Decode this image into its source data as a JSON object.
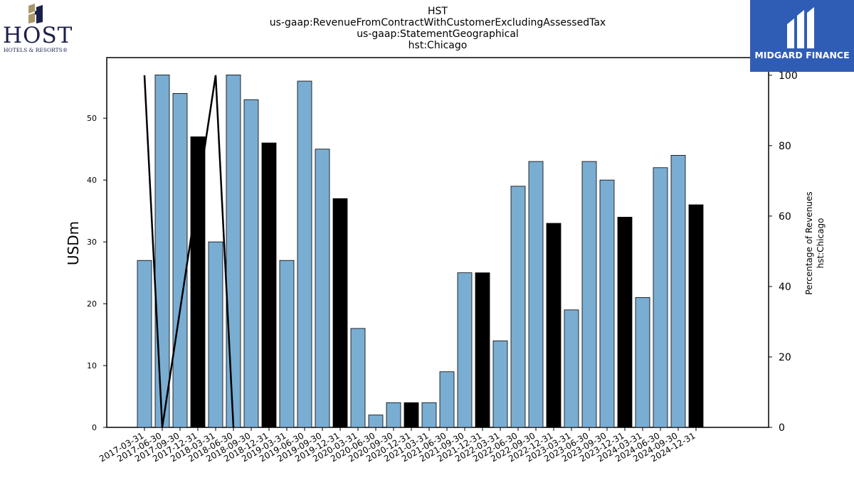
{
  "header": {
    "title_lines": [
      "HST",
      "us-gaap:RevenueFromContractWithCustomerExcludingAssessedTax",
      "us-gaap:StatementGeographical",
      "hst:Chicago"
    ]
  },
  "logos": {
    "host": {
      "word": "HOST",
      "subtitle": "HOTELS & RESORTS®",
      "icon": "host-h-icon",
      "colors": [
        "#a9976a",
        "#1b1f4a"
      ]
    },
    "midgard": {
      "text": "MIDGARD FINANCE",
      "icon": "midgard-m-icon",
      "background": "#2f5db5"
    }
  },
  "chart_data": {
    "type": "bar",
    "categories": [
      "2017-03-31",
      "2017-06-30",
      "2017-09-30",
      "2017-12-31",
      "2018-03-31",
      "2018-06-30",
      "2018-09-30",
      "2018-12-31",
      "2019-03-31",
      "2019-06-30",
      "2019-09-30",
      "2019-12-31",
      "2020-03-31",
      "2020-06-30",
      "2020-09-30",
      "2020-12-31",
      "2021-03-31",
      "2021-06-30",
      "2021-09-30",
      "2021-12-31",
      "2022-03-31",
      "2022-06-30",
      "2022-09-30",
      "2022-12-31",
      "2023-03-31",
      "2023-06-30",
      "2023-09-30",
      "2023-12-31",
      "2024-03-31",
      "2024-06-30",
      "2024-09-30",
      "2024-12-31"
    ],
    "series": [
      {
        "values": [
          27,
          57,
          54,
          47,
          30,
          57,
          53,
          46,
          27,
          56,
          45,
          37,
          16,
          2,
          4,
          4,
          4,
          9,
          25,
          25,
          14,
          39,
          43,
          33,
          19,
          43,
          40,
          34,
          21,
          42,
          44,
          36
        ],
        "highlight": [
          false,
          false,
          false,
          true,
          false,
          false,
          false,
          true,
          false,
          false,
          false,
          true,
          false,
          false,
          false,
          true,
          false,
          false,
          false,
          true,
          false,
          false,
          false,
          true,
          false,
          false,
          false,
          true,
          false,
          false,
          false,
          true
        ],
        "color": "#7aadd2",
        "highlight_color": "#000000",
        "axis": "left"
      },
      {
        "type": "line",
        "axis": "right",
        "x": [
          "2017-03-31",
          "2017-06-30",
          "2018-03-31",
          "2018-06-30"
        ],
        "values": [
          100,
          0,
          100,
          0
        ],
        "color": "#000000"
      }
    ],
    "ylabel": "USDm",
    "ylim": [
      0,
      59.8
    ],
    "yticks": [
      0,
      10,
      20,
      30,
      40,
      50
    ],
    "y2label_lines": [
      "Percentage of Revenues",
      "hst:Chicago"
    ],
    "y2lim": [
      0,
      105
    ],
    "y2ticks": [
      0,
      20,
      40,
      60,
      80,
      100
    ],
    "grid": false,
    "legend": "none"
  }
}
